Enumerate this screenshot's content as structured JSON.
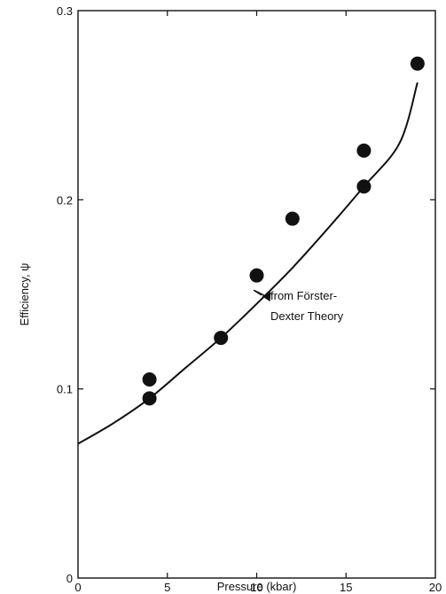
{
  "chart_data": {
    "type": "scatter",
    "xlabel": "Pressure (kbar)",
    "ylabel": "Efficiency, ψ",
    "xlim": [
      0,
      20
    ],
    "ylim": [
      0,
      0.3
    ],
    "x_ticks": [
      0,
      5,
      10,
      15,
      20
    ],
    "y_ticks": [
      0,
      0.1,
      0.2,
      0.3
    ],
    "x_tick_labels": [
      "0",
      "5",
      "10",
      "15",
      "20"
    ],
    "y_tick_labels": [
      "0",
      "0.1",
      "0.2",
      "0.3"
    ],
    "grid": false,
    "series": [
      {
        "kind": "points",
        "x": [
          4,
          4,
          8,
          10,
          12,
          16,
          16,
          19
        ],
        "y": [
          0.105,
          0.095,
          0.127,
          0.16,
          0.19,
          0.226,
          0.207,
          0.272
        ]
      },
      {
        "kind": "line",
        "name": "from Förster-Dexter Theory",
        "x": [
          0,
          2,
          4,
          6,
          8,
          10,
          12,
          14,
          16,
          18,
          19
        ],
        "y": [
          0.071,
          0.082,
          0.095,
          0.111,
          0.127,
          0.145,
          0.164,
          0.185,
          0.207,
          0.23,
          0.262
        ]
      }
    ],
    "annotation": {
      "lines": [
        "from Förster-",
        "Dexter Theory"
      ],
      "target": {
        "x": 10.2,
        "y": 0.149
      }
    }
  }
}
